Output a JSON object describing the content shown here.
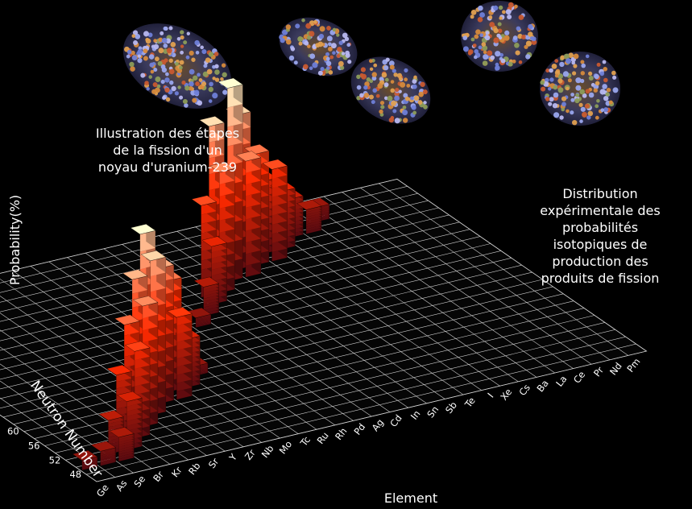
{
  "captions": {
    "illustration": "Illustration des étapes\nde la fission d'un\nnoyau d'uranium-239",
    "distribution": "Distribution\nexpérimentale des\nprobabilités\nisotopiques de\nproduction des\nproduits de fission"
  },
  "chart_data": {
    "type": "bar3d",
    "title": "",
    "zlabel": "Probability(%)",
    "xlabel": "Element",
    "ylabel": "Neutron Number",
    "zlim": [
      0,
      5
    ],
    "z_ticks": [
      "0",
      "1",
      "2",
      "3",
      "4",
      "5"
    ],
    "elements": [
      "Ge",
      "As",
      "Se",
      "Br",
      "Kr",
      "Rb",
      "Sr",
      "Y",
      "Zr",
      "Nb",
      "Mo",
      "Tc",
      "Ru",
      "Rh",
      "Pd",
      "Ag",
      "Cd",
      "In",
      "Sn",
      "Sb",
      "Te",
      "I",
      "Xe",
      "Cs",
      "Ba",
      "La",
      "Ce",
      "Pr",
      "Nd",
      "Pm"
    ],
    "neutron_ticks": [
      "48",
      "52",
      "56",
      "60",
      "64",
      "68",
      "72",
      "76",
      "80",
      "84",
      "88",
      "92"
    ],
    "light_peak": [
      {
        "element": "Ge",
        "neutron": 50,
        "value": 0.2
      },
      {
        "element": "As",
        "neutron": 50,
        "value": 0.3
      },
      {
        "element": "Se",
        "neutron": 50,
        "value": 0.5
      },
      {
        "element": "Se",
        "neutron": 52,
        "value": 0.7
      },
      {
        "element": "Br",
        "neutron": 52,
        "value": 1.0
      },
      {
        "element": "Br",
        "neutron": 54,
        "value": 1.4
      },
      {
        "element": "Kr",
        "neutron": 54,
        "value": 1.8
      },
      {
        "element": "Kr",
        "neutron": 56,
        "value": 2.2
      },
      {
        "element": "Rb",
        "neutron": 56,
        "value": 2.5
      },
      {
        "element": "Rb",
        "neutron": 58,
        "value": 2.9
      },
      {
        "element": "Sr",
        "neutron": 58,
        "value": 3.2
      },
      {
        "element": "Sr",
        "neutron": 60,
        "value": 3.6
      },
      {
        "element": "Y",
        "neutron": 60,
        "value": 2.8
      },
      {
        "element": "Zr",
        "neutron": 62,
        "value": 2.3
      },
      {
        "element": "Zr",
        "neutron": 60,
        "value": 1.7
      },
      {
        "element": "Nb",
        "neutron": 62,
        "value": 1.0
      },
      {
        "element": "Nb",
        "neutron": 64,
        "value": 0.5
      },
      {
        "element": "Mo",
        "neutron": 64,
        "value": 0.2
      }
    ],
    "heavy_peak": [
      {
        "element": "Rh",
        "neutron": 74,
        "value": 0.2
      },
      {
        "element": "Pd",
        "neutron": 76,
        "value": 0.6
      },
      {
        "element": "Ag",
        "neutron": 78,
        "value": 1.2
      },
      {
        "element": "Ag",
        "neutron": 80,
        "value": 1.9
      },
      {
        "element": "Cd",
        "neutron": 80,
        "value": 2.5
      },
      {
        "element": "Cd",
        "neutron": 82,
        "value": 3.3
      },
      {
        "element": "In",
        "neutron": 82,
        "value": 4.0
      },
      {
        "element": "Sn",
        "neutron": 84,
        "value": 3.2
      },
      {
        "element": "Sn",
        "neutron": 82,
        "value": 2.4
      },
      {
        "element": "Sb",
        "neutron": 84,
        "value": 2.3
      },
      {
        "element": "Te",
        "neutron": 84,
        "value": 1.9
      },
      {
        "element": "Te",
        "neutron": 86,
        "value": 1.5
      },
      {
        "element": "I",
        "neutron": 86,
        "value": 1.2
      },
      {
        "element": "Xe",
        "neutron": 88,
        "value": 0.8
      },
      {
        "element": "Cs",
        "neutron": 88,
        "value": 0.5
      },
      {
        "element": "Ba",
        "neutron": 90,
        "value": 0.3
      }
    ]
  },
  "colors": {
    "background": "#000000",
    "grid": "#ffffff",
    "bar_low": "#5a0a10",
    "bar_mid": "#ff2a00",
    "bar_high": "#fff4c8"
  }
}
